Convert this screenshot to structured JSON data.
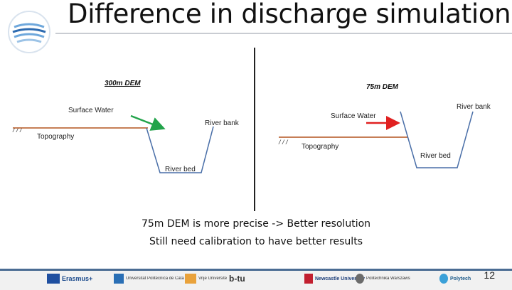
{
  "title": "Difference in discharge simulation",
  "left_panel": {
    "heading": "300m DEM",
    "surface_water": "Surface Water",
    "topography": "Topography",
    "river_bank": "River bank",
    "river_bed": "River bed",
    "arrow_color": "#22a34a"
  },
  "right_panel": {
    "heading": "75m DEM",
    "surface_water": "Surface Water",
    "topography": "Topography",
    "river_bank": "River bank",
    "river_bed": "River bed",
    "arrow_color": "#e02020"
  },
  "captions": [
    "75m DEM is more precise -> Better resolution",
    "Still need calibration to have better results"
  ],
  "footer": {
    "page_number": "12",
    "logos": [
      "Erasmus+",
      "Universitat Politècnica de Catalunya",
      "Vrije Universiteit Brussel",
      "b-tu",
      "Newcastle University",
      "Politechnika Warszawska",
      "Polytech"
    ]
  },
  "colors": {
    "topography_line": "#b4541e",
    "channel": "#4a6fa8",
    "footer_band": "#4a6c93"
  }
}
